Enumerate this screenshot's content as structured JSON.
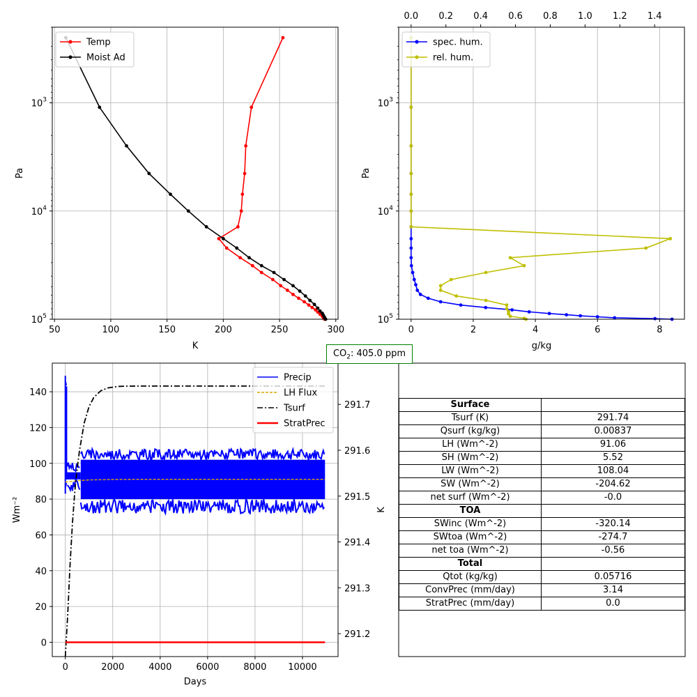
{
  "co2_box": {
    "prefix": "CO",
    "sub": "2",
    "text": ": 405.0 ppm"
  },
  "chart_data": [
    {
      "type": "line",
      "xlabel": "K",
      "ylabel": "Pa",
      "xlim": [
        48,
        302
      ],
      "ylim": [
        100000,
        200
      ],
      "yscale": "log",
      "xticks": [
        50,
        100,
        150,
        200,
        250,
        300
      ],
      "xtick_labels": [
        "50",
        "100",
        "150",
        "200",
        "250",
        "300"
      ],
      "yticks": [
        1000,
        10000,
        100000
      ],
      "ytick_labels": [
        {
          "base": "10",
          "exp": "3"
        },
        {
          "base": "10",
          "exp": "4"
        },
        {
          "base": "10",
          "exp": "5"
        }
      ],
      "grid": true,
      "legend": "upper-left",
      "series": [
        {
          "name": "Temp",
          "color": "#ff0000",
          "x": [
            253,
            225,
            220,
            219,
            217,
            216,
            213,
            196,
            203,
            215,
            226,
            234,
            244,
            251,
            257,
            262,
            267,
            272,
            276,
            279,
            282,
            284,
            286,
            288,
            289,
            290
          ],
          "y": [
            250,
            1100,
            2500,
            4500,
            7000,
            10000,
            14000,
            18000,
            22000,
            27000,
            32000,
            37000,
            43000,
            49000,
            54000,
            59000,
            64000,
            69000,
            74000,
            78000,
            82000,
            86000,
            90000,
            94000,
            97000,
            100000
          ]
        },
        {
          "name": "Moist Ad",
          "color": "#000000",
          "x": [
            60,
            90,
            114,
            134,
            153,
            169,
            185,
            200,
            212,
            223,
            234,
            245,
            254,
            262,
            268,
            273,
            277,
            281,
            284,
            286,
            288,
            289,
            290,
            291
          ],
          "y": [
            250,
            1100,
            2500,
            4500,
            7000,
            10000,
            14000,
            18000,
            22000,
            27000,
            32000,
            37000,
            43000,
            49000,
            55000,
            61000,
            67000,
            73000,
            79000,
            84000,
            88000,
            92000,
            96000,
            100000
          ]
        }
      ]
    },
    {
      "type": "line",
      "xlabel": "g/kg",
      "ylabel": "Pa",
      "xlim": [
        -0.4,
        8.8
      ],
      "ylim": [
        100000,
        200
      ],
      "yscale": "log",
      "xticks": [
        0,
        2,
        4,
        6,
        8
      ],
      "xtick_labels": [
        "0",
        "2",
        "4",
        "6",
        "8"
      ],
      "top_xlim": [
        -0.0714,
        1.5714
      ],
      "top_xticks": [
        0.0,
        0.2,
        0.4,
        0.6,
        0.8,
        1.0,
        1.2,
        1.4
      ],
      "top_xtick_labels": [
        "0.0",
        "0.2",
        "0.4",
        "0.6",
        "0.8",
        "1.0",
        "1.2",
        "1.4"
      ],
      "yticks": [
        1000,
        10000,
        100000
      ],
      "ytick_labels": [
        {
          "base": "10",
          "exp": "3"
        },
        {
          "base": "10",
          "exp": "4"
        },
        {
          "base": "10",
          "exp": "5"
        }
      ],
      "grid": true,
      "legend": "upper-left",
      "series": [
        {
          "name": "spec. hum.",
          "color": "#0000ff",
          "axis": "bottom",
          "x": [
            0.0,
            0.0,
            0.0,
            0.0,
            0.0,
            0.0,
            0.0,
            0.0,
            0.0,
            0.0,
            0.01,
            0.05,
            0.1,
            0.15,
            0.2,
            0.3,
            0.55,
            0.95,
            1.6,
            2.4,
            3.25,
            3.8,
            4.45,
            5.0,
            5.45,
            6.0,
            6.55,
            7.85,
            8.4
          ],
          "y": [
            250,
            1100,
            2500,
            4500,
            7000,
            10000,
            14000,
            18000,
            22000,
            27000,
            32000,
            37000,
            43000,
            48000,
            54000,
            59000,
            64000,
            69000,
            74000,
            78000,
            82000,
            85500,
            88500,
            91000,
            93000,
            95000,
            97000,
            98800,
            100000
          ]
        },
        {
          "name": "rel. hum.",
          "color": "#bfbf00",
          "axis": "top",
          "x": [
            0.0,
            0.0,
            0.0,
            0.0,
            0.0,
            0.0,
            0.0,
            1.49,
            1.35,
            0.57,
            0.65,
            0.43,
            0.23,
            0.17,
            0.17,
            0.26,
            0.43,
            0.55,
            0.55,
            0.56,
            0.56,
            0.57,
            0.65,
            0.66
          ],
          "y": [
            250,
            1100,
            2500,
            4500,
            7000,
            10000,
            14000,
            18000,
            22000,
            27000,
            32000,
            37000,
            43000,
            49000,
            54000,
            61000,
            67000,
            74000,
            80000,
            85000,
            89000,
            94000,
            98000,
            100000
          ]
        }
      ]
    },
    {
      "type": "line",
      "xlabel": "Days",
      "ylabel": "Wm⁻²",
      "right_ylabel": "K",
      "xlim": [
        -550,
        11500
      ],
      "ylim": [
        -8,
        156
      ],
      "right_ylim": [
        291.15,
        291.79
      ],
      "xticks": [
        0,
        2000,
        4000,
        6000,
        8000,
        10000
      ],
      "xtick_labels": [
        "0",
        "2000",
        "4000",
        "6000",
        "8000",
        "10000"
      ],
      "yticks": [
        0,
        20,
        40,
        60,
        80,
        100,
        120,
        140
      ],
      "ytick_labels": [
        "0",
        "20",
        "40",
        "60",
        "80",
        "100",
        "120",
        "140"
      ],
      "right_yticks": [
        291.2,
        291.3,
        291.4,
        291.5,
        291.6,
        291.7
      ],
      "right_ytick_labels": [
        "291.2",
        "291.3",
        "291.4",
        "291.5",
        "291.6",
        "291.7"
      ],
      "grid": true,
      "legend": "upper-right",
      "series": [
        {
          "name": "Precip",
          "color": "#0000ff",
          "style": "band",
          "band": [
            {
              "x0": 0,
              "x1": 80,
              "low": 83,
              "high": 149
            },
            {
              "x0": 80,
              "x1": 650,
              "low": 83,
              "high": 101
            },
            {
              "x0": 650,
              "x1": 10950,
              "low": 72,
              "high": 108
            }
          ]
        },
        {
          "name": "LH Flux",
          "color": "#ddaa00",
          "style": "dashed",
          "x": [
            0,
            200,
            500,
            1000,
            2000,
            3000,
            5000,
            8000,
            10950
          ],
          "y": [
            89.5,
            89.8,
            90.3,
            90.7,
            91.0,
            91.06,
            91.06,
            91.06,
            91.06
          ]
        },
        {
          "name": "Tsurf",
          "color": "#000000",
          "style": "dashdot",
          "axis": "right",
          "x": [
            0,
            100,
            200,
            300,
            400,
            500,
            600,
            800,
            1000,
            1200,
            1500,
            1800,
            2200,
            2600,
            3000,
            4000,
            6000,
            8000,
            10950
          ],
          "y": [
            291.15,
            291.24,
            291.35,
            291.44,
            291.51,
            291.56,
            291.6,
            291.66,
            291.695,
            291.715,
            291.73,
            291.736,
            291.739,
            291.7398,
            291.74,
            291.74,
            291.74,
            291.74,
            291.74
          ]
        },
        {
          "name": "StratPrec",
          "color": "#ff0000",
          "style": "solid-thick",
          "x": [
            0,
            10950
          ],
          "y": [
            0,
            0
          ]
        }
      ]
    }
  ],
  "table": {
    "rows": [
      {
        "label": "Surface",
        "value": "",
        "header": true
      },
      {
        "label": "Tsurf (K)",
        "value": "291.74"
      },
      {
        "label": "Qsurf (kg/kg)",
        "value": "0.00837"
      },
      {
        "label": "LH (Wm^-2)",
        "value": "91.06"
      },
      {
        "label": "SH (Wm^-2)",
        "value": "5.52"
      },
      {
        "label": "LW (Wm^-2)",
        "value": "108.04"
      },
      {
        "label": "SW (Wm^-2)",
        "value": "-204.62"
      },
      {
        "label": "net surf (Wm^-2)",
        "value": "-0.0"
      },
      {
        "label": "TOA",
        "value": "",
        "header": true
      },
      {
        "label": "SWinc (Wm^-2)",
        "value": "-320.14"
      },
      {
        "label": "SWtoa (Wm^-2)",
        "value": "-274.7"
      },
      {
        "label": "net toa (Wm^-2)",
        "value": "-0.56"
      },
      {
        "label": "Total",
        "value": "",
        "header": true
      },
      {
        "label": "Qtot (kg/kg)",
        "value": "0.05716"
      },
      {
        "label": "ConvPrec (mm/day)",
        "value": "3.14"
      },
      {
        "label": "StratPrec (mm/day)",
        "value": "0.0"
      }
    ]
  }
}
